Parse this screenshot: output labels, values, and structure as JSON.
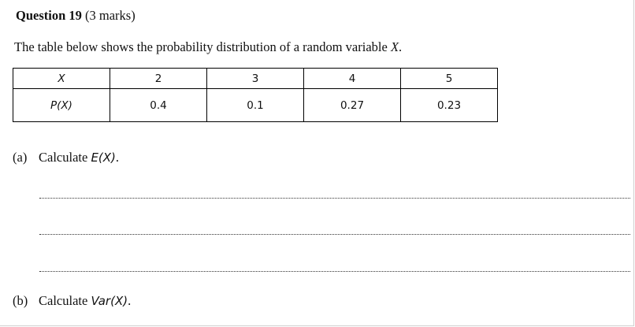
{
  "question": {
    "label": "Question 19",
    "marks": "(3 marks)"
  },
  "intro": {
    "text": "The table below shows the probability distribution of a random variable ",
    "variable": "X",
    "end": "."
  },
  "table": {
    "row1": [
      "X",
      "2",
      "3",
      "4",
      "5"
    ],
    "row2": [
      "P(X)",
      "0.4",
      "0.1",
      "0.27",
      "0.23"
    ]
  },
  "part_a": {
    "label": "(a)",
    "text": "Calculate ",
    "expr": "E(X)",
    "end": "."
  },
  "part_b": {
    "label": "(b)",
    "text": "Calculate ",
    "expr": "Var(X)",
    "end": "."
  }
}
